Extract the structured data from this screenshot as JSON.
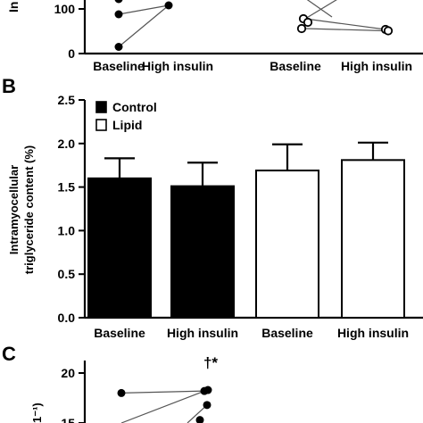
{
  "chart_data": [
    {
      "panel": "A (partial)",
      "type": "scatter",
      "ylabel_fragment": "In",
      "yticks": [
        "100",
        "0"
      ],
      "ylim": [
        0,
        200
      ],
      "xtick_labels": [
        "Baseline",
        "High insulin",
        "Baseline",
        "High insulin"
      ],
      "groups": [
        {
          "marker": "filled-circle",
          "baseline": [
            88,
            15
          ],
          "high_insulin": [
            108,
            108
          ],
          "pairs": [
            [
              88,
              108
            ],
            [
              15,
              108
            ]
          ]
        },
        {
          "marker": "open-circle",
          "baseline": [
            78,
            70,
            56
          ],
          "high_insulin": [
            54,
            51
          ],
          "pairs": [
            [
              78,
              54
            ],
            [
              56,
              51
            ]
          ]
        }
      ]
    },
    {
      "panel": "B",
      "type": "bar",
      "ylabel_line1": "Intramyocellular",
      "ylabel_line2": "triglyceride content (%)",
      "ylim": [
        0,
        2.5
      ],
      "yticks": [
        "0.0",
        "0.5",
        "1.0",
        "1.5",
        "2.0",
        "2.5"
      ],
      "categories": [
        "Baseline",
        "High insulin",
        "Baseline",
        "High insulin"
      ],
      "values": [
        1.6,
        1.51,
        1.69,
        1.81
      ],
      "errors": [
        0.23,
        0.27,
        0.3,
        0.2
      ],
      "groups": [
        "Control",
        "Control",
        "Lipid",
        "Lipid"
      ],
      "legend": [
        {
          "name": "Control",
          "fill": "#000000"
        },
        {
          "name": "Lipid",
          "fill": "#ffffff"
        }
      ],
      "legend_position": "top-left"
    },
    {
      "panel": "C (partial)",
      "type": "scatter",
      "ylabel_fragment": "1⁻¹)",
      "yticks": [
        "20",
        "15"
      ],
      "ylim": [
        14,
        22
      ],
      "annotation": "†*",
      "points": {
        "baseline": [
          18.0
        ],
        "high_insulin": [
          18.2,
          18.3,
          16.8,
          15.3
        ]
      },
      "pairs": [
        [
          18.0,
          18.2
        ]
      ]
    }
  ],
  "labels": {
    "panel_b": "B",
    "panel_c": "C"
  }
}
